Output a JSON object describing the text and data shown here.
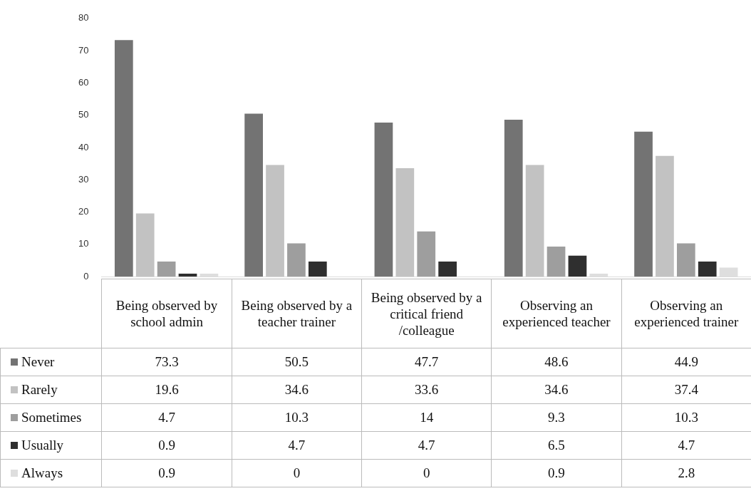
{
  "chart_data": {
    "type": "bar",
    "categories": [
      "Being observed by school admin",
      "Being observed by a teacher trainer",
      "Being observed by a critical friend /colleague",
      "Observing an experienced teacher",
      "Observing an experienced trainer"
    ],
    "series": [
      {
        "name": "Never",
        "color": "#737373",
        "values": [
          73.3,
          50.5,
          47.7,
          48.6,
          44.9
        ]
      },
      {
        "name": "Rarely",
        "color": "#c2c2c2",
        "values": [
          19.6,
          34.6,
          33.6,
          34.6,
          37.4
        ]
      },
      {
        "name": "Sometimes",
        "color": "#9e9e9e",
        "values": [
          4.7,
          10.3,
          14,
          9.3,
          10.3
        ]
      },
      {
        "name": "Usually",
        "color": "#2f2f2f",
        "values": [
          0.9,
          4.7,
          4.7,
          6.5,
          4.7
        ]
      },
      {
        "name": "Always",
        "color": "#dedede",
        "values": [
          0.9,
          0,
          0,
          0.9,
          2.8
        ]
      }
    ],
    "ylim": [
      0,
      80
    ],
    "yticks": [
      0,
      10,
      20,
      30,
      40,
      50,
      60,
      70,
      80
    ],
    "grid": false,
    "legend": "bottom",
    "data_labels": true
  }
}
